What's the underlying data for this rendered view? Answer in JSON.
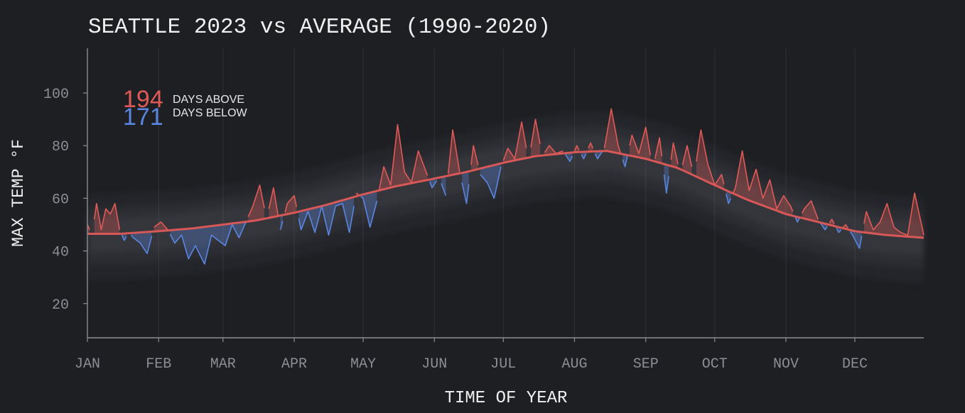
{
  "chart_data": {
    "type": "line",
    "title": "SEATTLE 2023 vs AVERAGE (1990-2020)",
    "xlabel": "TIME OF YEAR",
    "ylabel": "MAX TEMP °F",
    "x_tick_labels": [
      "JAN",
      "FEB",
      "MAR",
      "APR",
      "MAY",
      "JUN",
      "JUL",
      "AUG",
      "SEP",
      "OCT",
      "NOV",
      "DEC"
    ],
    "y_ticks": [
      20,
      40,
      60,
      80,
      100
    ],
    "xlim": [
      1,
      365
    ],
    "ylim": [
      7,
      117
    ],
    "grid": "vertical",
    "legend": {
      "placement": "top-left",
      "above_count": "194",
      "above_label": "DAYS ABOVE",
      "below_count": "171",
      "below_label": "DAYS BELOW"
    },
    "colors": {
      "background": "#1d1f23",
      "above": "#e05a58",
      "below": "#5a86e0",
      "average_line": "#e05a58",
      "historical_band": "#8a8d93",
      "axis": "#8b8e94",
      "grid": "#2e3136",
      "text": "#f0f0f0"
    },
    "series": [
      {
        "name": "Average",
        "x": [
          1,
          15,
          32,
          46,
          60,
          74,
          91,
          105,
          121,
          135,
          152,
          166,
          182,
          196,
          213,
          227,
          244,
          258,
          274,
          288,
          305,
          319,
          335,
          349,
          365
        ],
        "y": [
          46.5,
          46.5,
          47.5,
          48.5,
          50,
          51.5,
          54.5,
          57.5,
          61.5,
          64.5,
          67.5,
          70,
          73.5,
          76,
          77.5,
          78,
          75,
          71.5,
          65,
          59.5,
          54,
          51,
          47.5,
          46,
          45
        ]
      },
      {
        "name": "2023",
        "x": [
          1,
          3,
          5,
          7,
          9,
          11,
          13,
          15,
          17,
          19,
          21,
          24,
          27,
          30,
          33,
          36,
          39,
          42,
          45,
          48,
          52,
          55,
          58,
          61,
          64,
          67,
          70,
          73,
          76,
          79,
          82,
          85,
          88,
          91,
          94,
          97,
          100,
          103,
          106,
          109,
          112,
          115,
          118,
          121,
          124,
          127,
          130,
          133,
          136,
          139,
          142,
          145,
          148,
          151,
          154,
          157,
          160,
          163,
          166,
          169,
          172,
          175,
          178,
          181,
          184,
          187,
          190,
          193,
          196,
          199,
          202,
          205,
          208,
          211,
          214,
          217,
          220,
          223,
          226,
          229,
          232,
          235,
          238,
          241,
          244,
          247,
          250,
          253,
          256,
          259,
          262,
          265,
          268,
          271,
          274,
          277,
          280,
          283,
          286,
          289,
          292,
          295,
          298,
          301,
          304,
          307,
          310,
          313,
          316,
          319,
          322,
          325,
          328,
          331,
          334,
          337,
          340,
          343,
          346,
          349,
          352,
          355,
          358,
          361,
          365
        ],
        "y": [
          50,
          46,
          58,
          48,
          56,
          54,
          58,
          48,
          44,
          47,
          45,
          43,
          39,
          49,
          51,
          48,
          43,
          46,
          37,
          42,
          35,
          46,
          44,
          42,
          50,
          45,
          51,
          57,
          65,
          52,
          64,
          48,
          58,
          61,
          48,
          55,
          47,
          57,
          46,
          57,
          58,
          47,
          62,
          60,
          49,
          59,
          72,
          65,
          88,
          70,
          66,
          78,
          71,
          64,
          68,
          61,
          86,
          70,
          58,
          80,
          69,
          66,
          60,
          72,
          79,
          75,
          89,
          74,
          90,
          76,
          80,
          77,
          78,
          74,
          80,
          75,
          81,
          75,
          79,
          94,
          80,
          72,
          84,
          77,
          87,
          71,
          83,
          62,
          81,
          69,
          80,
          68,
          86,
          73,
          65,
          69,
          58,
          64,
          78,
          63,
          71,
          60,
          67,
          56,
          61,
          57,
          51,
          56,
          59,
          52,
          48,
          52,
          47,
          50,
          46,
          41,
          55,
          48,
          51,
          58,
          49,
          47,
          46,
          62,
          46
        ]
      }
    ]
  }
}
